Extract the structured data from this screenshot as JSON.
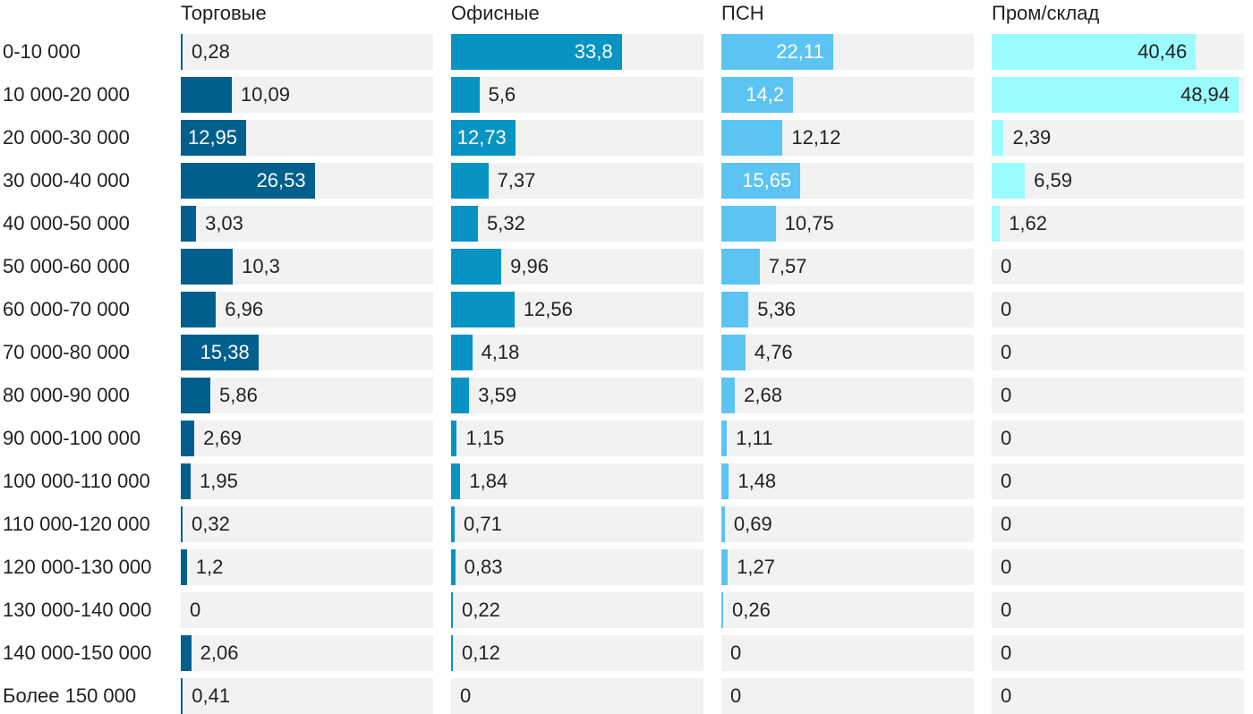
{
  "chart_data": {
    "type": "bar",
    "orientation": "horizontal",
    "layout": "small-multiples",
    "categories": [
      "0-10 000",
      "10 000-20 000",
      "20 000-30 000",
      "30 000-40 000",
      "40 000-50 000",
      "50 000-60 000",
      "60 000-70 000",
      "70 000-80 000",
      "80 000-90 000",
      "90 000-100 000",
      "100 000-110 000",
      "110 000-120 000",
      "120 000-130 000",
      "130 000-140 000",
      "140 000-150 000",
      "Более 150 000"
    ],
    "series": [
      {
        "name": "Торговые",
        "color": "#005f8c",
        "labels": [
          "0,28",
          "10,09",
          "12,95",
          "26,53",
          "3,03",
          "10,3",
          "6,96",
          "15,38",
          "5,86",
          "2,69",
          "1,95",
          "0,32",
          "1,2",
          "0",
          "2,06",
          "0,41"
        ],
        "values": [
          0.28,
          10.09,
          12.95,
          26.53,
          3.03,
          10.3,
          6.96,
          15.38,
          5.86,
          2.69,
          1.95,
          0.32,
          1.2,
          0,
          2.06,
          0.41
        ]
      },
      {
        "name": "Офисные",
        "color": "#0894c3",
        "labels": [
          "33,8",
          "5,6",
          "12,73",
          "7,37",
          "5,32",
          "9,96",
          "12,56",
          "4,18",
          "3,59",
          "1,15",
          "1,84",
          "0,71",
          "0,83",
          "0,22",
          "0,12",
          "0"
        ],
        "values": [
          33.8,
          5.6,
          12.73,
          7.37,
          5.32,
          9.96,
          12.56,
          4.18,
          3.59,
          1.15,
          1.84,
          0.71,
          0.83,
          0.22,
          0.12,
          0
        ]
      },
      {
        "name": "ПСН",
        "color": "#5cc4f3",
        "labels": [
          "22,11",
          "14,2",
          "12,12",
          "15,65",
          "10,75",
          "7,57",
          "5,36",
          "4,76",
          "2,68",
          "1,11",
          "1,48",
          "0,69",
          "1,27",
          "0,26",
          "0",
          "0"
        ],
        "values": [
          22.11,
          14.2,
          12.12,
          15.65,
          10.75,
          7.57,
          5.36,
          4.76,
          2.68,
          1.11,
          1.48,
          0.69,
          1.27,
          0.26,
          0,
          0
        ]
      },
      {
        "name": "Пром/склад",
        "color": "#9cfbfd",
        "labels": [
          "40,46",
          "48,94",
          "2,39",
          "6,59",
          "1,62",
          "0",
          "0",
          "0",
          "0",
          "0",
          "0",
          "0",
          "0",
          "0",
          "0",
          "0"
        ],
        "values": [
          40.46,
          48.94,
          2.39,
          6.59,
          1.62,
          0,
          0,
          0,
          0,
          0,
          0,
          0,
          0,
          0,
          0,
          0
        ]
      }
    ],
    "xlim": [
      0,
      50
    ],
    "track_color": "#f2f2f2",
    "grid": false,
    "legend": "none"
  }
}
